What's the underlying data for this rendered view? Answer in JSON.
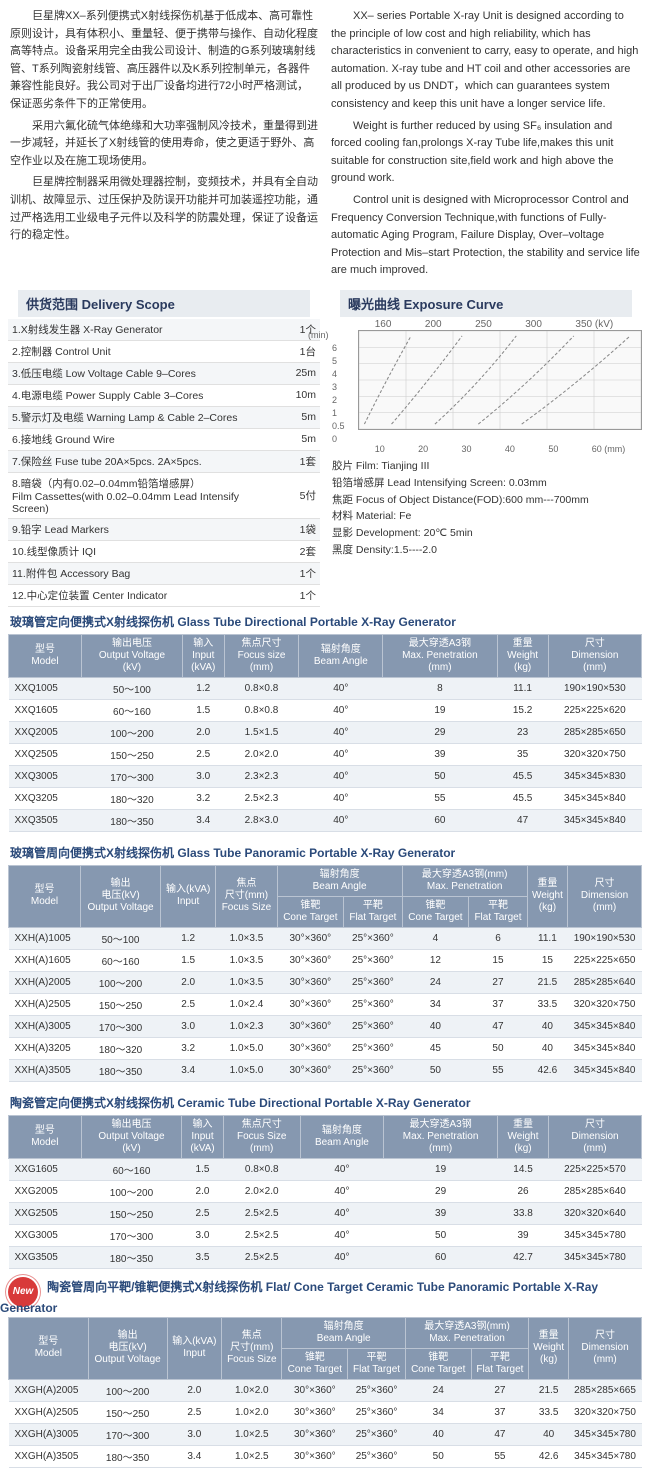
{
  "intro_cn": [
    "巨星牌XX–系列便携式X射线探伤机基于低成本、高可靠性原则设计，具有体积小、重量轻、便于携带与操作、自动化程度高等特点。设备采用完全由我公司设计、制造的G系列玻璃射线管、T系列陶瓷射线管、高压器件以及K系列控制单元，各器件兼容性能良好。我公司对于出厂设备均进行72小时严格测试，保证恶劣条件下的正常使用。",
    "采用六氟化硫气体绝缘和大功率强制风冷技术，重量得到进一步减轻，并延长了X射线管的使用寿命，使之更适于野外、高空作业以及在施工现场使用。",
    "巨星牌控制器采用微处理器控制，变频技术，并具有全自动训机、故障显示、过压保护及防误开功能并可加装遥控功能，通过严格选用工业级电子元件以及科学的防震处理，保证了设备运行的稳定性。"
  ],
  "intro_en": [
    "XX– series Portable X-ray Unit is designed according to the principle of low cost and high reliability, which has characteristics in convenient to carry, easy to operate, and high automation. X-ray tube and HT coil and other accessories are all produced by us DNDT，which can guarantees system consistency and keep this unit have a longer service life.",
    "Weight is further reduced by using SF₆ insulation and forced cooling fan,prolongs X-ray Tube life,makes this unit suitable for construction site,field work and high above the ground work.",
    "Control unit is designed with Microprocessor Control and Frequency Conversion Technique,with functions of Fully-automatic Aging Program, Failure Display, Over–voltage Protection and Mis–start Protection, the stability and service life are much improved."
  ],
  "section_delivery": "供货范围 Delivery Scope",
  "section_exposure": "曝光曲线 Exposure Curve",
  "delivery": [
    {
      "n": "1.X射线发生器 X-Ray Generator",
      "q": "1个"
    },
    {
      "n": "2.控制器 Control Unit",
      "q": "1台"
    },
    {
      "n": "3.低压电缆 Low Voltage Cable 9–Cores",
      "q": "25m"
    },
    {
      "n": "4.电源电缆 Power Supply Cable 3–Cores",
      "q": "10m"
    },
    {
      "n": "5.警示灯及电缆 Warning Lamp & Cable 2–Cores",
      "q": "5m"
    },
    {
      "n": "6.接地线 Ground Wire",
      "q": "5m"
    },
    {
      "n": "7.保险丝 Fuse tube  20A×5pcs.   2A×5pcs.",
      "q": "1套"
    },
    {
      "n": "8.暗袋（内有0.02–0.04mm铅箔增感屏）\nFilm Cassettes(with 0.02–0.04mm Lead Intensify Screen)",
      "q": "5付"
    },
    {
      "n": "9.铅字 Lead Markers",
      "q": "1袋"
    },
    {
      "n": "10.线型像质计 IQI",
      "q": "2套"
    },
    {
      "n": "11.附件包 Accessory Bag",
      "q": "1个"
    },
    {
      "n": "12.中心定位装置 Center Indicator",
      "q": "1个"
    }
  ],
  "chart": {
    "type": "line",
    "top_labels": [
      "160",
      "200",
      "250",
      "300",
      "350 (kV)"
    ],
    "y_unit": "(min)",
    "y_ticks": [
      "6",
      "5",
      "4",
      "3",
      "2",
      "1",
      "0.5",
      "0"
    ],
    "x_ticks": [
      "10",
      "20",
      "30",
      "40",
      "50",
      "60 (mm)"
    ],
    "grid_color": "#cccccc",
    "line_color": "#888888",
    "background": "#fafafa",
    "curves": [
      "M 5 95 Q 25 50 48 5",
      "M 30 95 Q 65 50 95 5",
      "M 70 95 Q 110 55 145 5",
      "M 110 95 Q 155 55 198 5",
      "M 150 95 Q 200 55 250 5"
    ]
  },
  "chart_notes": [
    "胶片 Film: Tianjing III",
    "铅箔增感屏 Lead Intensifying Screen:  0.03mm",
    "焦距 Focus of Object Distance(FOD):600 mm---700mm",
    "材料 Material: Fe",
    "显影 Development: 20℃ 5min",
    "黑度 Density:1.5----2.0"
  ],
  "heading1": "玻璃管定向便携式X射线探伤机 Glass Tube Directional Portable  X-Ray Generator",
  "cols1": [
    "型号\nModel",
    "输出电压\nOutput Voltage\n(kV)",
    "输入\nInput\n(kVA)",
    "焦点尺寸\nFocus size\n(mm)",
    "辐射角度\nBeam Angle",
    "最大穿透A3钢\nMax. Penetration\n(mm)",
    "重量\nWeight\n(kg)",
    "尺寸\nDimension\n(mm)"
  ],
  "rows1": [
    [
      "XXQ1005",
      "50～100",
      "1.2",
      "0.8×0.8",
      "40°",
      "8",
      "11.1",
      "190×190×530"
    ],
    [
      "XXQ1605",
      "60～160",
      "1.5",
      "0.8×0.8",
      "40°",
      "19",
      "15.2",
      "225×225×620"
    ],
    [
      "XXQ2005",
      "100～200",
      "2.0",
      "1.5×1.5",
      "40°",
      "29",
      "23",
      "285×285×650"
    ],
    [
      "XXQ2505",
      "150～250",
      "2.5",
      "2.0×2.0",
      "40°",
      "39",
      "35",
      "320×320×750"
    ],
    [
      "XXQ3005",
      "170～300",
      "3.0",
      "2.3×2.3",
      "40°",
      "50",
      "45.5",
      "345×345×830"
    ],
    [
      "XXQ3205",
      "180～320",
      "3.2",
      "2.5×2.3",
      "40°",
      "55",
      "45.5",
      "345×345×840"
    ],
    [
      "XXQ3505",
      "180～350",
      "3.4",
      "2.8×3.0",
      "40°",
      "60",
      "47",
      "345×345×840"
    ]
  ],
  "heading2": "玻璃管周向便携式X射线探伤机 Glass Tube Panoramic Portable  X-Ray Generator",
  "cols2_top": [
    "型号\nModel",
    "输出\n电压(kV)\nOutput Voltage",
    "输入(kVA)\nInput",
    "焦点\n尺寸(mm)\nFocus Size",
    "辐射角度\nBeam Angle",
    "最大穿透A3钢(mm)\nMax. Penetration",
    "重量\nWeight\n(kg)",
    "尺寸\nDimension\n(mm)"
  ],
  "cols2_sub": [
    "锥靶\nCone Target",
    "平靶\nFlat Target",
    "锥靶\nCone Target",
    "平靶\nFlat Target"
  ],
  "rows2": [
    [
      "XXH(A)1005",
      "50～100",
      "1.2",
      "1.0×3.5",
      "30°×360°",
      "25°×360°",
      "4",
      "6",
      "11.1",
      "190×190×530"
    ],
    [
      "XXH(A)1605",
      "60～160",
      "1.5",
      "1.0×3.5",
      "30°×360°",
      "25°×360°",
      "12",
      "15",
      "15",
      "225×225×650"
    ],
    [
      "XXH(A)2005",
      "100～200",
      "2.0",
      "1.0×3.5",
      "30°×360°",
      "25°×360°",
      "24",
      "27",
      "21.5",
      "285×285×640"
    ],
    [
      "XXH(A)2505",
      "150～250",
      "2.5",
      "1.0×2.4",
      "30°×360°",
      "25°×360°",
      "34",
      "37",
      "33.5",
      "320×320×750"
    ],
    [
      "XXH(A)3005",
      "170～300",
      "3.0",
      "1.0×2.3",
      "30°×360°",
      "25°×360°",
      "40",
      "47",
      "40",
      "345×345×840"
    ],
    [
      "XXH(A)3205",
      "180～320",
      "3.2",
      "1.0×5.0",
      "30°×360°",
      "25°×360°",
      "45",
      "50",
      "40",
      "345×345×840"
    ],
    [
      "XXH(A)3505",
      "180～350",
      "3.4",
      "1.0×5.0",
      "30°×360°",
      "25°×360°",
      "50",
      "55",
      "42.6",
      "345×345×840"
    ]
  ],
  "heading3": "陶瓷管定向便携式X射线探伤机 Ceramic Tube Directional Portable X-Ray Generator",
  "rows3": [
    [
      "XXG1605",
      "60～160",
      "1.5",
      "0.8×0.8",
      "40°",
      "19",
      "14.5",
      "225×225×570"
    ],
    [
      "XXG2005",
      "100～200",
      "2.0",
      "2.0×2.0",
      "40°",
      "29",
      "26",
      "285×285×640"
    ],
    [
      "XXG2505",
      "150～250",
      "2.5",
      "2.5×2.5",
      "40°",
      "39",
      "33.8",
      "320×320×640"
    ],
    [
      "XXG3005",
      "170～300",
      "3.0",
      "2.5×2.5",
      "40°",
      "50",
      "39",
      "345×345×780"
    ],
    [
      "XXG3505",
      "180～350",
      "3.5",
      "2.5×2.5",
      "40°",
      "60",
      "42.7",
      "345×345×780"
    ]
  ],
  "new_label": "New",
  "heading4": "陶瓷管周向平靶/锥靶便携式X射线探伤机 Flat/ Cone Target  Ceramic Tube Panoramic Portable  X-Ray Generator",
  "rows4": [
    [
      "XXGH(A)2005",
      "100～200",
      "2.0",
      "1.0×2.0",
      "30°×360°",
      "25°×360°",
      "24",
      "27",
      "21.5",
      "285×285×665"
    ],
    [
      "XXGH(A)2505",
      "150～250",
      "2.5",
      "1.0×2.0",
      "30°×360°",
      "25°×360°",
      "34",
      "37",
      "33.5",
      "320×320×750"
    ],
    [
      "XXGH(A)3005",
      "170～300",
      "3.0",
      "1.0×2.5",
      "30°×360°",
      "25°×360°",
      "40",
      "47",
      "40",
      "345×345×780"
    ],
    [
      "XXGH(A)3505",
      "180～350",
      "3.4",
      "1.0×2.5",
      "30°×360°",
      "25°×360°",
      "50",
      "55",
      "42.6",
      "345×345×780"
    ]
  ],
  "cols3": [
    "型号\nModel",
    "输出电压\nOutput Voltage\n(kV)",
    "输入\nInput\n(kVA)",
    "焦点尺寸\nFocus Size\n(mm)",
    "辐射角度\nBeam Angle",
    "最大穿透A3钢\nMax. Penetration\n(mm)",
    "重量\nWeight\n(kg)",
    "尺寸\nDimension\n(mm)"
  ]
}
